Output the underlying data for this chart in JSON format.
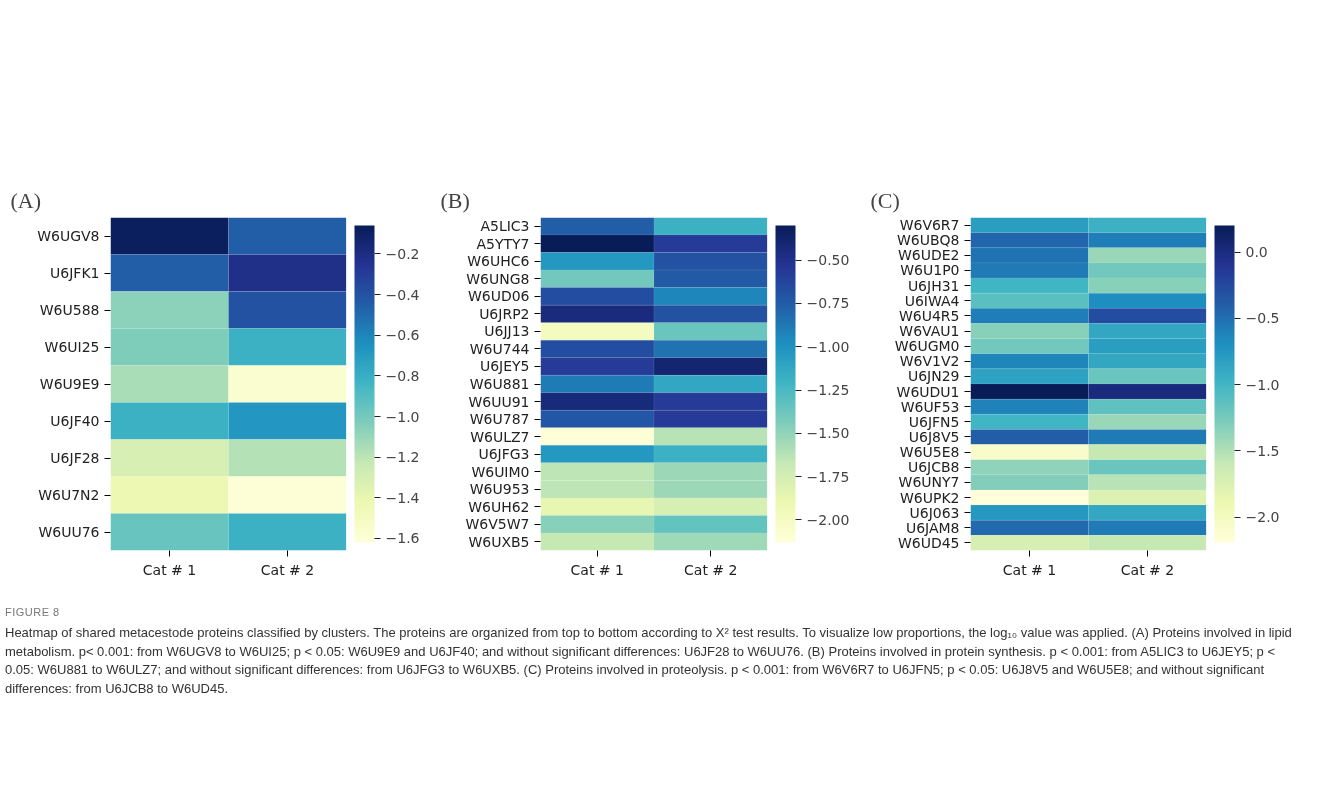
{
  "chart_data": [
    {
      "type": "heatmap",
      "title": "(A)",
      "categories": [
        "Cat # 1",
        "Cat # 2"
      ],
      "y_categories": [
        "W6UGV8",
        "U6JFK1",
        "W6U588",
        "W6UI25",
        "W6U9E9",
        "U6JF40",
        "U6JF28",
        "W6U7N2",
        "W6UU76"
      ],
      "cells": [
        [
          -0.08,
          -0.45
        ],
        [
          -0.45,
          -0.22
        ],
        [
          -1.07,
          -0.4
        ],
        [
          -1.03,
          -0.81
        ],
        [
          -1.15,
          -1.57
        ],
        [
          -0.81,
          -0.68
        ],
        [
          -1.31,
          -1.18
        ],
        [
          -1.43,
          -1.6
        ],
        [
          -0.96,
          -0.81
        ]
      ],
      "clim": [
        -1.62,
        -0.06
      ],
      "cticks": [
        {
          "value": -0.2,
          "label": "−0.2"
        },
        {
          "value": -0.4,
          "label": "−0.4"
        },
        {
          "value": -0.6,
          "label": "−0.6"
        },
        {
          "value": -0.8,
          "label": "−0.8"
        },
        {
          "value": -1.0,
          "label": "−1.0"
        },
        {
          "value": -1.2,
          "label": "−1.2"
        },
        {
          "value": -1.4,
          "label": "−1.4"
        },
        {
          "value": -1.6,
          "label": "−1.6"
        }
      ],
      "annotations": [
        "FIGURE 8",
        "Heatmap of shared metacestode proteins classified by clusters. The proteins are organized from top to bottom according to X² test results. To visualize low proportions, the log₁₀ value was applied. (A) Proteins involved in lipid metabolism. p< 0.001: from W6UGV8 to W6UI25; p < 0.05: W6U9E9 and U6JF40; and without significant differences: U6JF28 to W6UU76. (B) Proteins involved in protein synthesis. p < 0.001: from A5LIC3 to U6JEY5; p < 0.05: W6U881 to W6ULZ7; and without significant differences: from U6JFG3 to W6UXB5. (C) Proteins involved in proteolysis. p < 0.001: from W6V6R7 to U6JFN5; p < 0.05: U6J8V5 and W6U5E8; and without significant differences: from U6JCB8 to W6UD45."
      ]
    },
    {
      "type": "heatmap",
      "title": "(B)",
      "categories": [
        "Cat # 1",
        "Cat # 2"
      ],
      "y_categories": [
        "A5LIC3",
        "A5YTY7",
        "W6UHC6",
        "W6UNG8",
        "W6UD06",
        "U6JRP2",
        "U6JJ13",
        "W6U744",
        "U6JEY5",
        "W6U881",
        "W6UU91",
        "W6U787",
        "W6ULZ7",
        "U6JFG3",
        "W6UIM0",
        "W6U953",
        "W6UH62",
        "W6V5W7",
        "W6UXB5"
      ],
      "cells": [
        [
          -0.76,
          -1.18
        ],
        [
          -0.3,
          -0.57
        ],
        [
          -1.03,
          -0.7
        ],
        [
          -1.4,
          -0.74
        ],
        [
          -0.67,
          -0.94
        ],
        [
          -0.45,
          -0.7
        ],
        [
          -1.98,
          -1.36
        ],
        [
          -0.67,
          -0.85
        ],
        [
          -0.57,
          -0.39
        ],
        [
          -0.89,
          -1.12
        ],
        [
          -0.43,
          -0.57
        ],
        [
          -0.72,
          -0.57
        ],
        [
          -2.11,
          -1.62
        ],
        [
          -1.03,
          -1.18
        ],
        [
          -1.64,
          -1.53
        ],
        [
          -1.64,
          -1.53
        ],
        [
          -1.86,
          -1.76
        ],
        [
          -1.47,
          -1.34
        ],
        [
          -1.67,
          -1.54
        ]
      ],
      "clim": [
        -2.13,
        -0.3
      ],
      "cticks": [
        {
          "value": -0.5,
          "label": "−0.50"
        },
        {
          "value": -0.75,
          "label": "−0.75"
        },
        {
          "value": -1.0,
          "label": "−1.00"
        },
        {
          "value": -1.25,
          "label": "−1.25"
        },
        {
          "value": -1.5,
          "label": "−1.50"
        },
        {
          "value": -1.75,
          "label": "−1.75"
        },
        {
          "value": -2.0,
          "label": "−2.00"
        }
      ]
    },
    {
      "type": "heatmap",
      "title": "(C)",
      "categories": [
        "Cat # 1",
        "Cat # 2"
      ],
      "y_categories": [
        "W6V6R7",
        "W6UBQ8",
        "W6UDE2",
        "W6U1P0",
        "U6JH31",
        "U6IWA4",
        "W6U4R5",
        "W6VAU1",
        "W6UGM0",
        "W6V1V2",
        "U6JN29",
        "W6UDU1",
        "W6UF53",
        "U6JFN5",
        "U6J8V5",
        "W6U5E8",
        "U6JCB8",
        "W6UNY7",
        "W6UPK2",
        "U6J063",
        "U6JAM8",
        "W6UD45"
      ],
      "cells": [
        [
          -0.8,
          -0.95
        ],
        [
          -0.45,
          -0.59
        ],
        [
          -0.52,
          -1.4
        ],
        [
          -0.56,
          -1.23
        ],
        [
          -0.99,
          -1.33
        ],
        [
          -1.11,
          -0.68
        ],
        [
          -0.59,
          -0.28
        ],
        [
          -1.33,
          -0.88
        ],
        [
          -1.23,
          -0.8
        ],
        [
          -0.64,
          -0.88
        ],
        [
          -0.83,
          -1.19
        ],
        [
          0.2,
          0.01
        ],
        [
          -0.61,
          -1.14
        ],
        [
          -0.99,
          -1.4
        ],
        [
          -0.4,
          -0.56
        ],
        [
          -2.07,
          -1.59
        ],
        [
          -1.35,
          -1.19
        ],
        [
          -1.31,
          -1.52
        ],
        [
          -2.19,
          -1.76
        ],
        [
          -0.76,
          -0.88
        ],
        [
          -0.47,
          -0.56
        ],
        [
          -1.71,
          -1.59
        ]
      ],
      "clim": [
        -2.19,
        0.2
      ],
      "cticks": [
        {
          "value": 0.0,
          "label": "0.0"
        },
        {
          "value": -0.5,
          "label": "−0.5"
        },
        {
          "value": -1.0,
          "label": "−1.0"
        },
        {
          "value": -1.5,
          "label": "−1.5"
        },
        {
          "value": -2.0,
          "label": "−2.0"
        }
      ]
    }
  ]
}
